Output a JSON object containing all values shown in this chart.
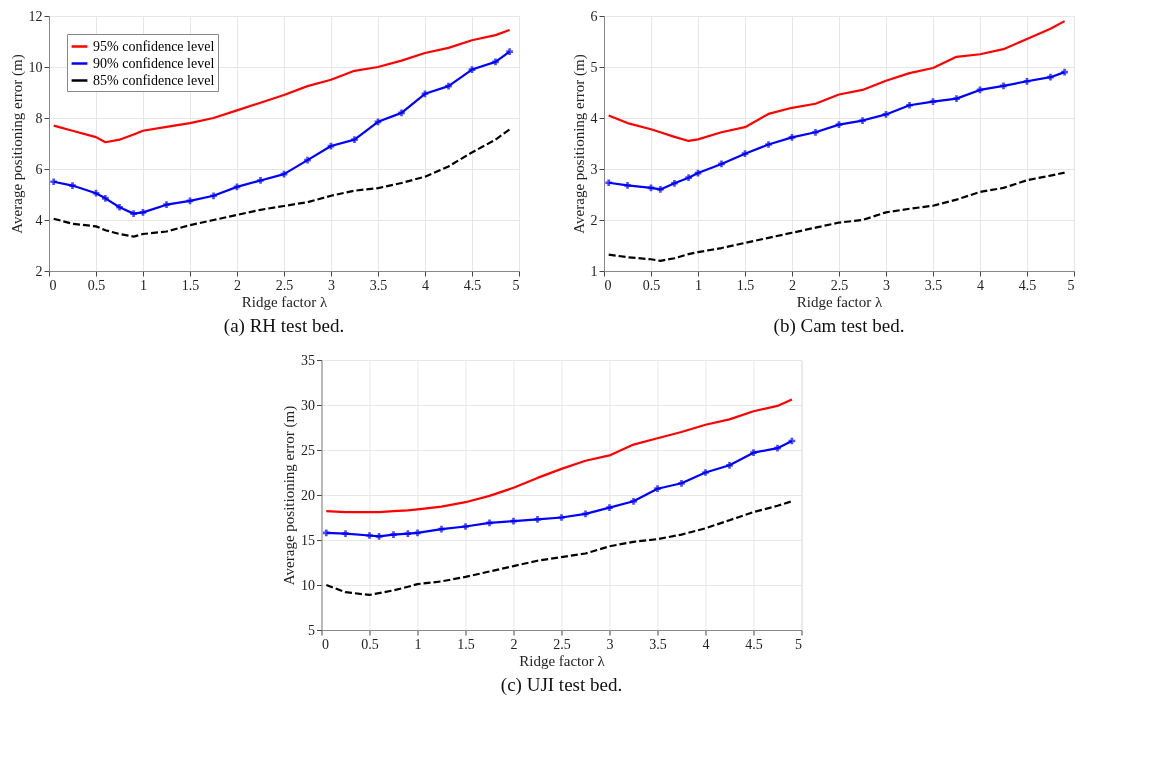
{
  "chart_data": [
    {
      "type": "line",
      "title": "(a) RH test bed.",
      "xlabel": "Ridge factor λ",
      "ylabel": "Average positioning error (m)",
      "x": [
        0.05,
        0.25,
        0.5,
        0.6,
        0.75,
        0.9,
        1,
        1.25,
        1.5,
        1.75,
        2,
        2.25,
        2.5,
        2.75,
        3,
        3.25,
        3.5,
        3.75,
        4,
        4.25,
        4.5,
        4.75,
        4.9
      ],
      "series": [
        {
          "name": "95% confidence level",
          "color": "#ff0000",
          "marker": "none",
          "line_style": "solid",
          "values": [
            7.7,
            7.5,
            7.25,
            7.05,
            7.15,
            7.35,
            7.5,
            7.65,
            7.8,
            8.0,
            8.3,
            8.6,
            8.9,
            9.25,
            9.5,
            9.85,
            10.0,
            10.25,
            10.55,
            10.75,
            11.05,
            11.25,
            11.45
          ]
        },
        {
          "name": "90% confidence level",
          "color": "#0000ff",
          "marker": "cross",
          "line_style": "solid",
          "values": [
            5.5,
            5.35,
            5.05,
            4.85,
            4.5,
            4.25,
            4.3,
            4.6,
            4.75,
            4.95,
            5.3,
            5.55,
            5.8,
            6.35,
            6.9,
            7.15,
            7.85,
            8.2,
            8.95,
            9.25,
            9.9,
            10.2,
            10.6
          ]
        },
        {
          "name": "85% confidence level",
          "color": "#000000",
          "marker": "none",
          "line_style": "dashed",
          "values": [
            4.05,
            3.85,
            3.75,
            3.6,
            3.45,
            3.35,
            3.45,
            3.55,
            3.8,
            4.0,
            4.2,
            4.4,
            4.55,
            4.7,
            4.95,
            5.15,
            5.25,
            5.45,
            5.7,
            6.1,
            6.65,
            7.15,
            7.55
          ]
        }
      ],
      "xlim": [
        0,
        5
      ],
      "xticks": [
        0,
        0.5,
        1,
        1.5,
        2,
        2.5,
        3,
        3.5,
        4,
        4.5,
        5
      ],
      "ylim": [
        2,
        12
      ],
      "yticks": [
        2,
        4,
        6,
        8,
        10,
        12
      ],
      "grid": true,
      "legend": "top left"
    },
    {
      "type": "line",
      "title": "(b) Cam test bed.",
      "xlabel": "Ridge factor λ",
      "ylabel": "Average positioning error (m)",
      "x": [
        0.05,
        0.25,
        0.5,
        0.6,
        0.75,
        0.9,
        1,
        1.25,
        1.5,
        1.75,
        2,
        2.25,
        2.5,
        2.75,
        3,
        3.25,
        3.5,
        3.75,
        4,
        4.25,
        4.5,
        4.75,
        4.9
      ],
      "series": [
        {
          "name": "95% confidence level",
          "color": "#ff0000",
          "marker": "none",
          "line_style": "solid",
          "values": [
            4.05,
            3.9,
            3.78,
            3.72,
            3.63,
            3.55,
            3.58,
            3.72,
            3.82,
            4.08,
            4.2,
            4.28,
            4.46,
            4.55,
            4.73,
            4.88,
            4.98,
            5.2,
            5.25,
            5.35,
            5.55,
            5.75,
            5.9
          ]
        },
        {
          "name": "90% confidence level",
          "color": "#0000ff",
          "marker": "cross",
          "line_style": "solid",
          "values": [
            2.73,
            2.68,
            2.63,
            2.6,
            2.72,
            2.83,
            2.92,
            3.1,
            3.3,
            3.48,
            3.62,
            3.72,
            3.87,
            3.95,
            4.07,
            4.25,
            4.32,
            4.38,
            4.55,
            4.63,
            4.72,
            4.8,
            4.9
          ]
        },
        {
          "name": "85% confidence level",
          "color": "#000000",
          "marker": "none",
          "line_style": "dashed",
          "values": [
            1.32,
            1.27,
            1.23,
            1.2,
            1.25,
            1.33,
            1.37,
            1.45,
            1.55,
            1.65,
            1.75,
            1.85,
            1.95,
            2.0,
            2.15,
            2.22,
            2.28,
            2.4,
            2.55,
            2.63,
            2.78,
            2.87,
            2.93
          ]
        }
      ],
      "xlim": [
        0,
        5
      ],
      "xticks": [
        0,
        0.5,
        1,
        1.5,
        2,
        2.5,
        3,
        3.5,
        4,
        4.5,
        5
      ],
      "ylim": [
        1,
        6
      ],
      "yticks": [
        1,
        2,
        3,
        4,
        5,
        6
      ],
      "grid": true,
      "legend": "top left"
    },
    {
      "type": "line",
      "title": "(c) UJI test bed.",
      "xlabel": "Ridge factor λ",
      "ylabel": "Average positioning error (m)",
      "x": [
        0.05,
        0.25,
        0.5,
        0.6,
        0.75,
        0.9,
        1,
        1.25,
        1.5,
        1.75,
        2,
        2.25,
        2.5,
        2.75,
        3,
        3.25,
        3.5,
        3.75,
        4,
        4.25,
        4.5,
        4.75,
        4.9
      ],
      "series": [
        {
          "name": "95% confidence level",
          "color": "#ff0000",
          "marker": "none",
          "line_style": "solid",
          "values": [
            18.2,
            18.1,
            18.1,
            18.1,
            18.2,
            18.3,
            18.4,
            18.7,
            19.2,
            19.9,
            20.8,
            21.9,
            22.9,
            23.8,
            24.4,
            25.6,
            26.3,
            27.0,
            27.8,
            28.4,
            29.3,
            29.9,
            30.6
          ]
        },
        {
          "name": "90% confidence level",
          "color": "#0000ff",
          "marker": "cross",
          "line_style": "solid",
          "values": [
            15.8,
            15.7,
            15.5,
            15.4,
            15.6,
            15.7,
            15.8,
            16.2,
            16.5,
            16.9,
            17.1,
            17.3,
            17.5,
            17.9,
            18.6,
            19.3,
            20.7,
            21.3,
            22.5,
            23.3,
            24.7,
            25.2,
            26.0
          ]
        },
        {
          "name": "85% confidence level",
          "color": "#000000",
          "marker": "none",
          "line_style": "dashed",
          "values": [
            10.0,
            9.2,
            8.9,
            9.1,
            9.4,
            9.8,
            10.1,
            10.4,
            10.9,
            11.5,
            12.1,
            12.7,
            13.1,
            13.5,
            14.3,
            14.8,
            15.1,
            15.6,
            16.3,
            17.2,
            18.1,
            18.8,
            19.3
          ]
        }
      ],
      "xlim": [
        0,
        5
      ],
      "xticks": [
        0,
        0.5,
        1,
        1.5,
        2,
        2.5,
        3,
        3.5,
        4,
        4.5,
        5
      ],
      "ylim": [
        5,
        35
      ],
      "yticks": [
        5,
        10,
        15,
        20,
        25,
        30,
        35
      ],
      "grid": true,
      "legend": "top left"
    }
  ]
}
